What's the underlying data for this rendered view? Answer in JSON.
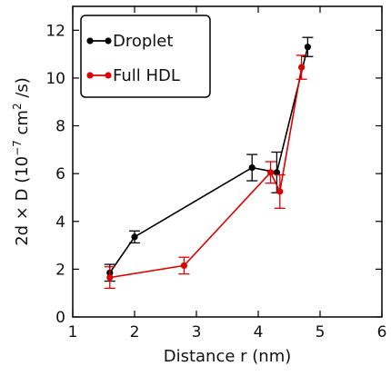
{
  "chart_data": {
    "type": "line",
    "xlabel": "Distance r (nm)",
    "ylabel": {
      "prefix": "2d × D (10",
      "exp1": "−7",
      "mid": " cm",
      "exp2": "2",
      "suffix": " /s)"
    },
    "xlim": [
      1,
      6
    ],
    "ylim": [
      0,
      13
    ],
    "x_ticks": [
      1,
      2,
      3,
      4,
      5,
      6
    ],
    "y_ticks": [
      0,
      2,
      4,
      6,
      8,
      10,
      12
    ],
    "grid": false,
    "legend_position": "top-left",
    "series": [
      {
        "name": "Droplet",
        "color": "#000000",
        "x": [
          1.6,
          2.0,
          3.9,
          4.3,
          4.8
        ],
        "y": [
          1.85,
          3.35,
          6.25,
          6.05,
          11.3
        ],
        "yerr": [
          0.35,
          0.25,
          0.55,
          0.85,
          0.4
        ]
      },
      {
        "name": "Full HDL",
        "color": "#dd0000",
        "x": [
          1.6,
          2.8,
          4.2,
          4.35,
          4.7
        ],
        "y": [
          1.65,
          2.15,
          6.05,
          5.25,
          10.45
        ],
        "yerr": [
          0.45,
          0.35,
          0.45,
          0.7,
          0.5
        ]
      }
    ]
  }
}
